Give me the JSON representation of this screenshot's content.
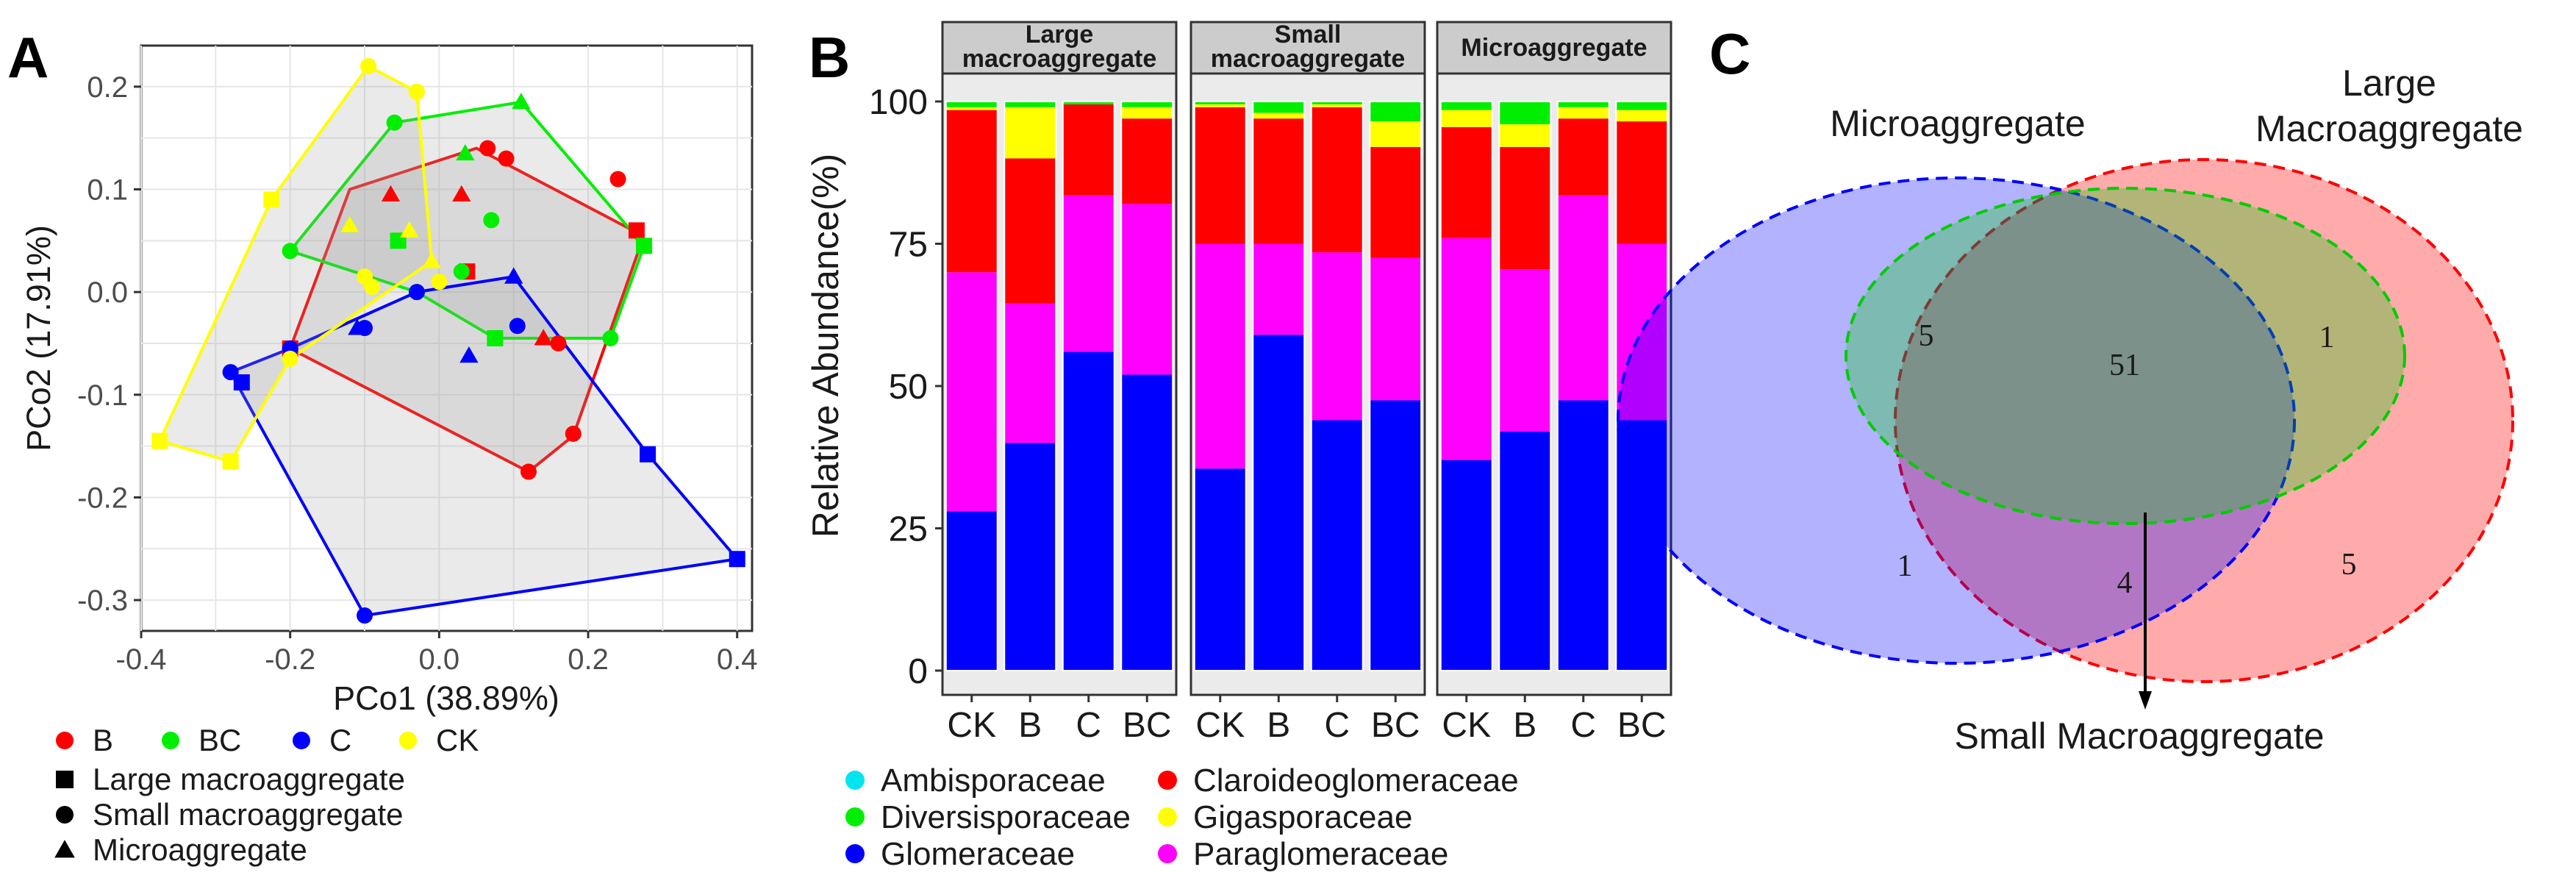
{
  "panels": {
    "a": {
      "letter": "A",
      "chart_data": {
        "type": "scatter",
        "xlabel": "PCo1 (38.89%)",
        "ylabel": "PCo2 (17.91%)",
        "xlim": [
          -0.4,
          0.42
        ],
        "ylim": [
          -0.33,
          0.24
        ],
        "xticks": [
          -0.4,
          -0.2,
          0.0,
          0.2,
          0.4
        ],
        "xtick_labels": [
          "-0.4",
          "-0.2",
          "0.0",
          "0.2",
          "0.4"
        ],
        "yticks": [
          0.2,
          0.1,
          0.0,
          -0.1,
          -0.2,
          -0.3
        ],
        "ytick_labels": [
          "0.2",
          "0.1",
          "0.0",
          "-0.1",
          "-0.2",
          "-0.3"
        ],
        "grid": true,
        "groups": [
          {
            "name": "B",
            "color": "#ff0000",
            "hull": [
              [
                -0.2,
                -0.055
              ],
              [
                -0.12,
                0.1
              ],
              [
                0.05,
                0.14
              ],
              [
                0.26,
                0.06
              ],
              [
                0.27,
                0.045
              ],
              [
                0.18,
                -0.14
              ],
              [
                0.12,
                -0.175
              ]
            ],
            "points": [
              {
                "shape": "square",
                "x": -0.2,
                "y": -0.055
              },
              {
                "shape": "square",
                "x": 0.265,
                "y": 0.06
              },
              {
                "shape": "square",
                "x": 0.0375,
                "y": 0.02
              },
              {
                "shape": "circle",
                "x": 0.12,
                "y": -0.175
              },
              {
                "shape": "circle",
                "x": 0.18,
                "y": -0.138
              },
              {
                "shape": "circle",
                "x": 0.09,
                "y": 0.13
              },
              {
                "shape": "circle",
                "x": 0.16,
                "y": -0.05
              },
              {
                "shape": "circle",
                "x": 0.24,
                "y": 0.11
              },
              {
                "shape": "circle",
                "x": 0.065,
                "y": 0.14
              },
              {
                "shape": "triangle",
                "x": -0.065,
                "y": 0.095
              },
              {
                "shape": "triangle",
                "x": 0.03,
                "y": 0.095
              },
              {
                "shape": "triangle",
                "x": 0.14,
                "y": -0.045
              }
            ]
          },
          {
            "name": "BC",
            "color": "#00ee00",
            "hull": [
              [
                -0.2,
                0.04
              ],
              [
                -0.06,
                0.165
              ],
              [
                0.11,
                0.185
              ],
              [
                0.275,
                0.045
              ],
              [
                0.23,
                -0.045
              ],
              [
                0.075,
                -0.045
              ],
              [
                -0.03,
                0.0
              ]
            ],
            "points": [
              {
                "shape": "square",
                "x": 0.275,
                "y": 0.045
              },
              {
                "shape": "square",
                "x": -0.055,
                "y": 0.05
              },
              {
                "shape": "square",
                "x": 0.075,
                "y": -0.045
              },
              {
                "shape": "circle",
                "x": -0.2,
                "y": 0.04
              },
              {
                "shape": "circle",
                "x": 0.23,
                "y": -0.045
              },
              {
                "shape": "circle",
                "x": -0.06,
                "y": 0.165
              },
              {
                "shape": "circle",
                "x": 0.07,
                "y": 0.07
              },
              {
                "shape": "circle",
                "x": -0.03,
                "y": 0.0
              },
              {
                "shape": "circle",
                "x": 0.03,
                "y": 0.02
              },
              {
                "shape": "triangle",
                "x": 0.11,
                "y": 0.185
              },
              {
                "shape": "triangle",
                "x": 0.035,
                "y": 0.135
              },
              {
                "shape": "triangle",
                "x": -0.12,
                "y": 0.065
              }
            ]
          },
          {
            "name": "C",
            "color": "#0000ff",
            "hull": [
              [
                -0.28,
                -0.078
              ],
              [
                -0.1,
                -0.315
              ],
              [
                0.4,
                -0.26
              ],
              [
                0.28,
                -0.158
              ],
              [
                0.1,
                0.015
              ],
              [
                -0.03,
                0.0
              ],
              [
                -0.2,
                -0.055
              ]
            ],
            "points": [
              {
                "shape": "square",
                "x": 0.4,
                "y": -0.26
              },
              {
                "shape": "square",
                "x": 0.28,
                "y": -0.158
              },
              {
                "shape": "square",
                "x": -0.265,
                "y": -0.088
              },
              {
                "shape": "circle",
                "x": -0.28,
                "y": -0.078
              },
              {
                "shape": "circle",
                "x": -0.1,
                "y": -0.315
              },
              {
                "shape": "circle",
                "x": 0.105,
                "y": -0.033
              },
              {
                "shape": "circle",
                "x": -0.1,
                "y": -0.035
              },
              {
                "shape": "circle",
                "x": -0.03,
                "y": 0.0
              },
              {
                "shape": "circle",
                "x": -0.2,
                "y": -0.055
              },
              {
                "shape": "triangle",
                "x": 0.1,
                "y": 0.015
              },
              {
                "shape": "triangle",
                "x": 0.04,
                "y": -0.062
              },
              {
                "shape": "triangle",
                "x": -0.11,
                "y": -0.035
              }
            ]
          },
          {
            "name": "CK",
            "color": "#ffff00",
            "hull": [
              [
                -0.375,
                -0.145
              ],
              [
                -0.225,
                0.09
              ],
              [
                -0.095,
                0.22
              ],
              [
                -0.03,
                0.195
              ],
              [
                -0.01,
                0.03
              ],
              [
                -0.2,
                -0.065
              ],
              [
                -0.28,
                -0.165
              ]
            ],
            "points": [
              {
                "shape": "square",
                "x": -0.375,
                "y": -0.145
              },
              {
                "shape": "square",
                "x": -0.225,
                "y": 0.09
              },
              {
                "shape": "square",
                "x": -0.28,
                "y": -0.165
              },
              {
                "shape": "circle",
                "x": -0.095,
                "y": 0.22
              },
              {
                "shape": "circle",
                "x": -0.03,
                "y": 0.195
              },
              {
                "shape": "circle",
                "x": -0.2,
                "y": -0.065
              },
              {
                "shape": "circle",
                "x": -0.1,
                "y": 0.015
              },
              {
                "shape": "circle",
                "x": 0.0,
                "y": 0.01
              },
              {
                "shape": "circle",
                "x": -0.09,
                "y": 0.005
              },
              {
                "shape": "triangle",
                "x": -0.12,
                "y": 0.065
              },
              {
                "shape": "triangle",
                "x": -0.04,
                "y": 0.06
              },
              {
                "shape": "triangle",
                "x": -0.01,
                "y": 0.03
              }
            ]
          }
        ]
      },
      "legend": {
        "groups": [
          {
            "label": "B",
            "color": "#ff0000"
          },
          {
            "label": "BC",
            "color": "#00ee00"
          },
          {
            "label": "C",
            "color": "#0000ff"
          },
          {
            "label": "CK",
            "color": "#ffff00"
          }
        ],
        "shapes": [
          {
            "label": "Large macroaggregate",
            "shape": "square"
          },
          {
            "label": "Small macroaggregate",
            "shape": "circle"
          },
          {
            "label": "Microaggregate",
            "shape": "triangle"
          }
        ]
      }
    },
    "b": {
      "letter": "B",
      "chart_data": {
        "type": "bar",
        "stacked": true,
        "ylabel": "Relative Abundance(%)",
        "ylim": [
          0,
          100
        ],
        "yticks": [
          0,
          25,
          50,
          75,
          100
        ],
        "families": [
          {
            "name": "Glomeraceae",
            "color": "#0000ff"
          },
          {
            "name": "Paraglomeraceae",
            "color": "#ff00ff"
          },
          {
            "name": "Claroideoglomeraceae",
            "color": "#ff0000"
          },
          {
            "name": "Gigasporaceae",
            "color": "#ffff00"
          },
          {
            "name": "Diversisporaceae",
            "color": "#00ee00"
          },
          {
            "name": "Ambisporaceae",
            "color": "#00e5ee"
          }
        ],
        "facets": [
          {
            "title": [
              "Large",
              "macroaggregate"
            ],
            "categories": [
              "CK",
              "B",
              "C",
              "BC"
            ],
            "values": [
              [
                28,
                42,
                28.5,
                0.5,
                1,
                0
              ],
              [
                40,
                24.5,
                25.5,
                9,
                1,
                0
              ],
              [
                56,
                27.5,
                16,
                0,
                0.5,
                0
              ],
              [
                52,
                30,
                15,
                2,
                1,
                0
              ]
            ]
          },
          {
            "title": [
              "Small",
              "macroaggregate"
            ],
            "categories": [
              "CK",
              "B",
              "C",
              "BC"
            ],
            "values": [
              [
                35.5,
                39.5,
                24,
                0.5,
                0.5,
                0
              ],
              [
                59,
                16,
                22,
                1,
                2,
                0
              ],
              [
                44,
                29.5,
                25.5,
                0.5,
                0.5,
                0
              ],
              [
                47.5,
                25,
                19.5,
                4.5,
                3.5,
                0
              ]
            ]
          },
          {
            "title": [
              "Microaggregate"
            ],
            "categories": [
              "CK",
              "B",
              "C",
              "BC"
            ],
            "values": [
              [
                37,
                39,
                19.5,
                3,
                1.5,
                0
              ],
              [
                42,
                28.5,
                21.5,
                4,
                4,
                0
              ],
              [
                47.5,
                36,
                13.5,
                2,
                1,
                0
              ],
              [
                44,
                31,
                21.5,
                2,
                1.5,
                0
              ]
            ]
          }
        ]
      },
      "legend": [
        {
          "label": "Ambisporaceae",
          "color": "#00e5ee"
        },
        {
          "label": "Claroideoglomeraceae",
          "color": "#ff0000"
        },
        {
          "label": "Diversisporaceae",
          "color": "#00ee00"
        },
        {
          "label": "Gigasporaceae",
          "color": "#ffff00"
        },
        {
          "label": "Glomeraceae",
          "color": "#0000ff"
        },
        {
          "label": "Paraglomeraceae",
          "color": "#ff00ff"
        }
      ]
    },
    "c": {
      "letter": "C",
      "sets": {
        "micro": {
          "label": "Microaggregate",
          "color": "#0000ff"
        },
        "large": {
          "label_lines": [
            "Large",
            "Macroaggregate"
          ],
          "color": "#ff0000"
        },
        "small": {
          "label": "Small Macroaggregate",
          "color": "#00cc00"
        }
      },
      "counts": {
        "micro_small": "5",
        "all_three": "51",
        "large_small": "1",
        "micro_only": "1",
        "micro_large": "4",
        "large_only": "5"
      }
    }
  }
}
